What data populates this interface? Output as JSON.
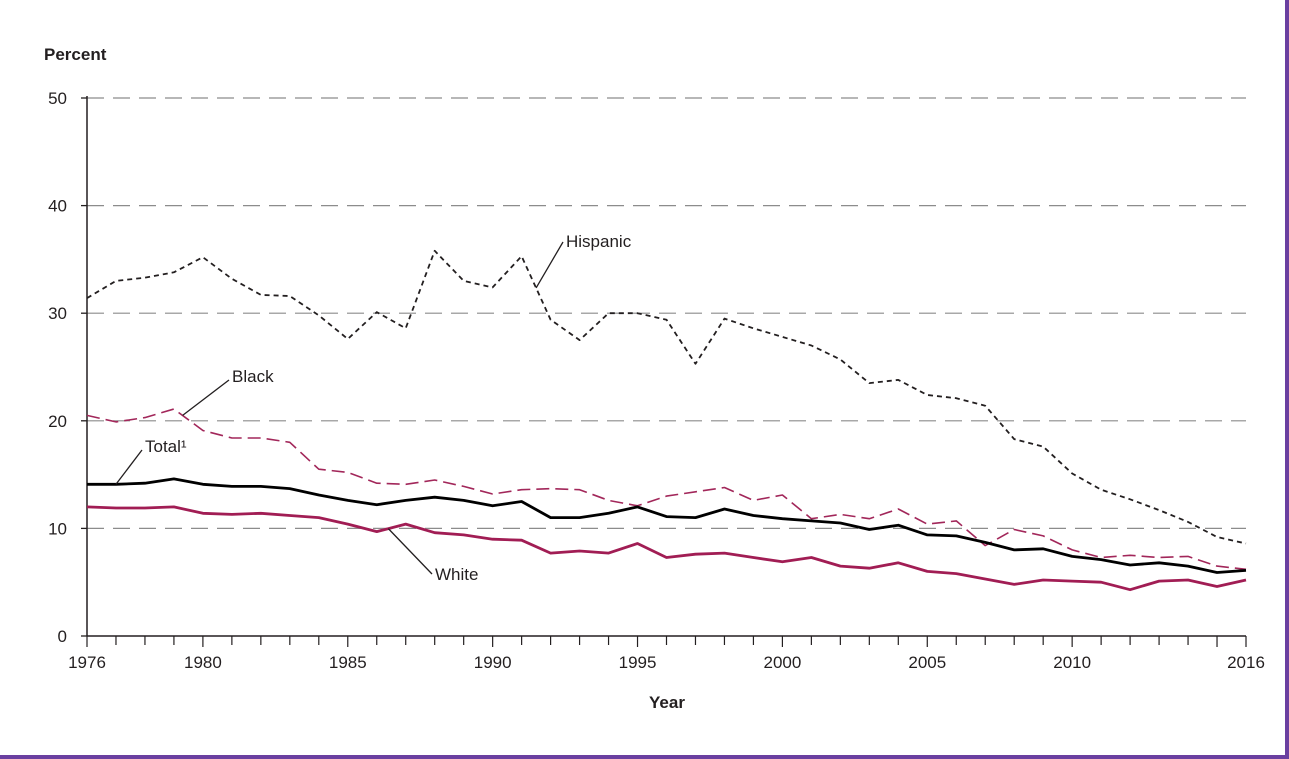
{
  "chart_data": {
    "type": "line",
    "ylabel": "Percent",
    "xlabel": "Year",
    "xlim": [
      1976,
      2016
    ],
    "ylim": [
      0,
      50
    ],
    "x_tick_labels": [
      "1976",
      "1980",
      "1985",
      "1990",
      "1995",
      "2000",
      "2005",
      "2010",
      "2016"
    ],
    "y_tick_labels": [
      "0",
      "10",
      "20",
      "30",
      "40",
      "50"
    ],
    "grid": true,
    "x": [
      1976,
      1977,
      1978,
      1979,
      1980,
      1981,
      1982,
      1983,
      1984,
      1985,
      1986,
      1987,
      1988,
      1989,
      1990,
      1991,
      1992,
      1993,
      1994,
      1995,
      1996,
      1997,
      1998,
      1999,
      2000,
      2001,
      2002,
      2003,
      2004,
      2005,
      2006,
      2007,
      2008,
      2009,
      2010,
      2011,
      2012,
      2013,
      2014,
      2015,
      2016
    ],
    "series": [
      {
        "name": "Hispanic",
        "color": "#231f20",
        "style": "dotted",
        "values": [
          31.4,
          33.0,
          33.3,
          33.8,
          35.2,
          33.2,
          31.7,
          31.6,
          29.8,
          27.6,
          30.1,
          28.6,
          35.8,
          33.0,
          32.4,
          35.3,
          29.4,
          27.5,
          30.0,
          30.0,
          29.4,
          25.3,
          29.5,
          28.6,
          27.8,
          27.0,
          25.7,
          23.5,
          23.8,
          22.4,
          22.1,
          21.4,
          18.3,
          17.6,
          15.1,
          13.6,
          12.7,
          11.7,
          10.6,
          9.2,
          8.6
        ]
      },
      {
        "name": "Black",
        "color": "#a2275a",
        "style": "dashed",
        "values": [
          20.5,
          19.9,
          20.3,
          21.1,
          19.1,
          18.4,
          18.4,
          18.0,
          15.5,
          15.2,
          14.2,
          14.1,
          14.5,
          13.9,
          13.2,
          13.6,
          13.7,
          13.6,
          12.6,
          12.1,
          13.0,
          13.4,
          13.8,
          12.6,
          13.1,
          10.9,
          11.3,
          10.9,
          11.8,
          10.4,
          10.7,
          8.4,
          9.9,
          9.3,
          8.0,
          7.3,
          7.5,
          7.3,
          7.4,
          6.5,
          6.2
        ]
      },
      {
        "name": "Total¹",
        "color": "#000000",
        "style": "solid",
        "values": [
          14.1,
          14.1,
          14.2,
          14.6,
          14.1,
          13.9,
          13.9,
          13.7,
          13.1,
          12.6,
          12.2,
          12.6,
          12.9,
          12.6,
          12.1,
          12.5,
          11.0,
          11.0,
          11.4,
          12.0,
          11.1,
          11.0,
          11.8,
          11.2,
          10.9,
          10.7,
          10.5,
          9.9,
          10.3,
          9.4,
          9.3,
          8.7,
          8.0,
          8.1,
          7.4,
          7.1,
          6.6,
          6.8,
          6.5,
          5.9,
          6.1
        ]
      },
      {
        "name": "White",
        "color": "#a11d54",
        "style": "solid",
        "values": [
          12.0,
          11.9,
          11.9,
          12.0,
          11.4,
          11.3,
          11.4,
          11.2,
          11.0,
          10.4,
          9.7,
          10.4,
          9.6,
          9.4,
          9.0,
          8.9,
          7.7,
          7.9,
          7.7,
          8.6,
          7.3,
          7.6,
          7.7,
          7.3,
          6.9,
          7.3,
          6.5,
          6.3,
          6.8,
          6.0,
          5.8,
          5.3,
          4.8,
          5.2,
          5.1,
          5.0,
          4.3,
          5.1,
          5.2,
          4.6,
          5.2
        ]
      }
    ]
  }
}
